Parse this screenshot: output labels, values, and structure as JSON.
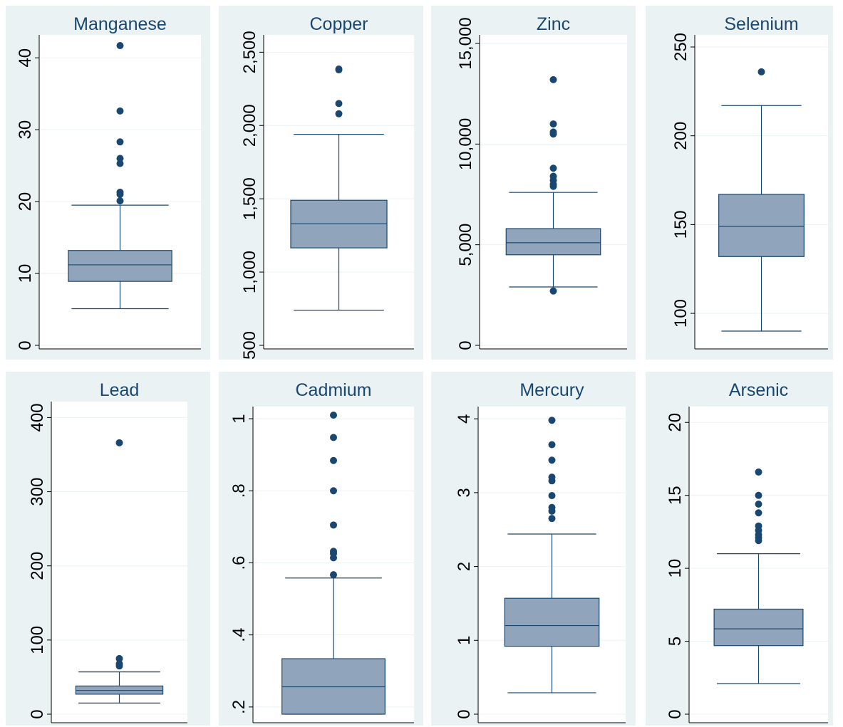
{
  "colors": {
    "panel_bg": "#eaf2f3",
    "plot_bg": "#ffffff",
    "box_fill": "#90a4bb",
    "box_stroke": "#1a476f",
    "outlier": "#1a476f",
    "gridline": "#eaf2f3",
    "text": "#1a476f"
  },
  "chart_data": [
    {
      "type": "box",
      "title": "Manganese",
      "ylim": [
        0,
        42
      ],
      "ticks": [
        0,
        10,
        20,
        30,
        40
      ],
      "tick_labels": [
        "0",
        "10",
        "20",
        "30",
        "40"
      ],
      "whisker_low": 5.1,
      "q1": 8.9,
      "median": 11.2,
      "q3": 13.2,
      "whisker_high": 19.5,
      "outliers": [
        41.7,
        32.6,
        28.3,
        26.0,
        25.3,
        21.3,
        21.0,
        20.1
      ]
    },
    {
      "type": "box",
      "title": "Copper",
      "ylim": [
        500,
        2560
      ],
      "ticks": [
        500,
        1000,
        1500,
        2000,
        2500
      ],
      "tick_labels": [
        "500",
        "1,000",
        "1,500",
        "2,000",
        "2,500"
      ],
      "whisker_low": 740,
      "q1": 1165,
      "median": 1330,
      "q3": 1490,
      "whisker_high": 1940,
      "outliers": [
        2385,
        2380,
        2150,
        2080
      ]
    },
    {
      "type": "box",
      "title": "Zinc",
      "ylim": [
        0,
        15000
      ],
      "ticks": [
        0,
        5000,
        10000,
        15000
      ],
      "tick_labels": [
        "0",
        "5,000",
        "10,000",
        "15,000"
      ],
      "whisker_low": 2900,
      "q1": 4500,
      "median": 5100,
      "q3": 5800,
      "whisker_high": 7600,
      "outliers": [
        13200,
        11000,
        10600,
        10500,
        8800,
        8400,
        8200,
        8000,
        7900,
        2700
      ]
    },
    {
      "type": "box",
      "title": "Selenium",
      "ylim": [
        88,
        252
      ],
      "ticks": [
        100,
        150,
        200,
        250
      ],
      "tick_labels": [
        "100",
        "150",
        "200",
        "250"
      ],
      "whisker_low": 90,
      "q1": 132,
      "median": 149,
      "q3": 167,
      "whisker_high": 217,
      "outliers": [
        236
      ]
    },
    {
      "type": "box",
      "title": "Lead",
      "ylim": [
        0,
        410
      ],
      "ticks": [
        0,
        100,
        200,
        300,
        400
      ],
      "tick_labels": [
        "0",
        "100",
        "200",
        "300",
        "400"
      ],
      "whisker_low": 15,
      "q1": 27,
      "median": 32,
      "q3": 38,
      "whisker_high": 57,
      "outliers": [
        366,
        75,
        68,
        65
      ]
    },
    {
      "type": "box",
      "title": "Cadmium",
      "ylim": [
        0.18,
        1.01
      ],
      "ticks": [
        0.2,
        0.4,
        0.6,
        0.8,
        1
      ],
      "tick_labels": [
        ".2",
        ".4",
        ".6",
        ".8",
        "1"
      ],
      "whisker_low": 0.18,
      "q1": 0.18,
      "median": 0.256,
      "q3": 0.334,
      "whisker_high": 0.558,
      "outliers": [
        1.01,
        0.948,
        0.884,
        0.8,
        0.705,
        0.632,
        0.626,
        0.614,
        0.567
      ]
    },
    {
      "type": "box",
      "title": "Mercury",
      "ylim": [
        0,
        4.05
      ],
      "ticks": [
        0,
        1,
        2,
        3,
        4
      ],
      "tick_labels": [
        "0",
        "1",
        "2",
        "3",
        "4"
      ],
      "whisker_low": 0.29,
      "q1": 0.92,
      "median": 1.2,
      "q3": 1.57,
      "whisker_high": 2.44,
      "outliers": [
        3.98,
        3.65,
        3.44,
        3.21,
        3.16,
        2.96,
        2.8,
        2.75,
        2.65
      ]
    },
    {
      "type": "box",
      "title": "Arsenic",
      "ylim": [
        0,
        20.5
      ],
      "ticks": [
        0,
        5,
        10,
        15,
        20
      ],
      "tick_labels": [
        "0",
        "5",
        "10",
        "15",
        "20"
      ],
      "whisker_low": 2.1,
      "q1": 4.7,
      "median": 5.85,
      "q3": 7.2,
      "whisker_high": 11.0,
      "outliers": [
        16.6,
        15.0,
        14.4,
        13.8,
        12.9,
        12.6,
        12.3,
        12.1,
        11.9
      ]
    }
  ]
}
